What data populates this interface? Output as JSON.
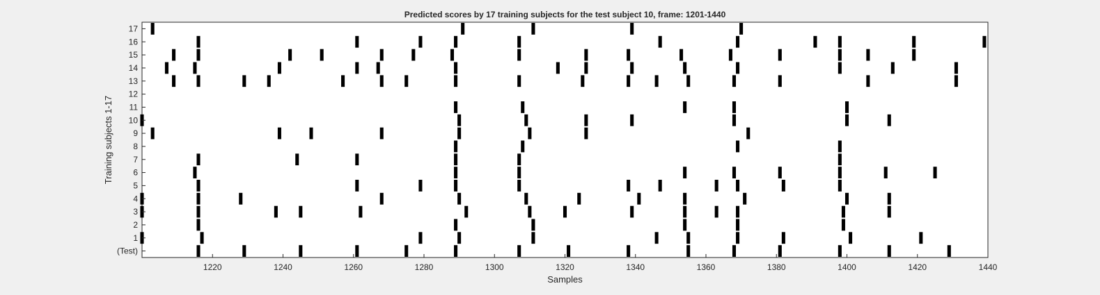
{
  "chart_data": {
    "type": "raster",
    "title": "Predicted scores by 17 training subjects for the test subject 10, frame: 1201-1440",
    "xlabel": "Samples",
    "ylabel": "Training subjects 1-17",
    "xlim": [
      1200,
      1440
    ],
    "x_ticks": [
      1220,
      1240,
      1260,
      1280,
      1300,
      1320,
      1340,
      1360,
      1380,
      1400,
      1420,
      1440
    ],
    "row_labels": [
      "(Test)",
      "1",
      "2",
      "3",
      "4",
      "5",
      "6",
      "7",
      "8",
      "9",
      "10",
      "11",
      "12",
      "13",
      "14",
      "15",
      "16",
      "17"
    ],
    "grid": false,
    "series": [
      {
        "name": "(Test)",
        "x": [
          1216,
          1229,
          1245,
          1261,
          1275,
          1289,
          1307,
          1321,
          1338,
          1355,
          1368,
          1381,
          1398,
          1412,
          1429
        ]
      },
      {
        "name": "1",
        "x": [
          1200,
          1217,
          1279,
          1290,
          1311,
          1346,
          1355,
          1369,
          1382,
          1401,
          1421
        ]
      },
      {
        "name": "2",
        "x": [
          1216,
          1289,
          1311,
          1354,
          1369,
          1399
        ]
      },
      {
        "name": "3",
        "x": [
          1200,
          1216,
          1238,
          1245,
          1262,
          1292,
          1310,
          1320,
          1339,
          1354,
          1363,
          1369,
          1399,
          1412
        ]
      },
      {
        "name": "4",
        "x": [
          1200,
          1216,
          1228,
          1268,
          1290,
          1309,
          1324,
          1341,
          1354,
          1371,
          1400,
          1412
        ]
      },
      {
        "name": "5",
        "x": [
          1216,
          1261,
          1279,
          1289,
          1307,
          1338,
          1347,
          1363,
          1369,
          1382,
          1398
        ]
      },
      {
        "name": "6",
        "x": [
          1215,
          1289,
          1307,
          1354,
          1368,
          1381,
          1398,
          1411,
          1425
        ]
      },
      {
        "name": "7",
        "x": [
          1216,
          1244,
          1261,
          1289,
          1307,
          1398
        ]
      },
      {
        "name": "8",
        "x": [
          1289,
          1308,
          1369,
          1398
        ]
      },
      {
        "name": "9",
        "x": [
          1203,
          1239,
          1248,
          1268,
          1290,
          1310,
          1326,
          1372
        ]
      },
      {
        "name": "10",
        "x": [
          1200,
          1290,
          1309,
          1326,
          1339,
          1368,
          1400,
          1412
        ]
      },
      {
        "name": "11",
        "x": [
          1289,
          1308,
          1354,
          1368,
          1400
        ]
      },
      {
        "name": "12",
        "x": []
      },
      {
        "name": "13",
        "x": [
          1209,
          1216,
          1229,
          1236,
          1257,
          1268,
          1275,
          1289,
          1307,
          1325,
          1338,
          1346,
          1355,
          1368,
          1381,
          1406,
          1431
        ]
      },
      {
        "name": "14",
        "x": [
          1207,
          1215,
          1239,
          1261,
          1267,
          1289,
          1318,
          1326,
          1339,
          1354,
          1369,
          1398,
          1413,
          1431
        ]
      },
      {
        "name": "15",
        "x": [
          1209,
          1216,
          1242,
          1251,
          1268,
          1277,
          1288,
          1307,
          1326,
          1338,
          1353,
          1367,
          1381,
          1398,
          1406,
          1419
        ]
      },
      {
        "name": "16",
        "x": [
          1216,
          1261,
          1279,
          1289,
          1307,
          1347,
          1369,
          1391,
          1398,
          1419,
          1439
        ]
      },
      {
        "name": "17",
        "x": [
          1203,
          1291,
          1311,
          1339,
          1370
        ]
      }
    ]
  }
}
